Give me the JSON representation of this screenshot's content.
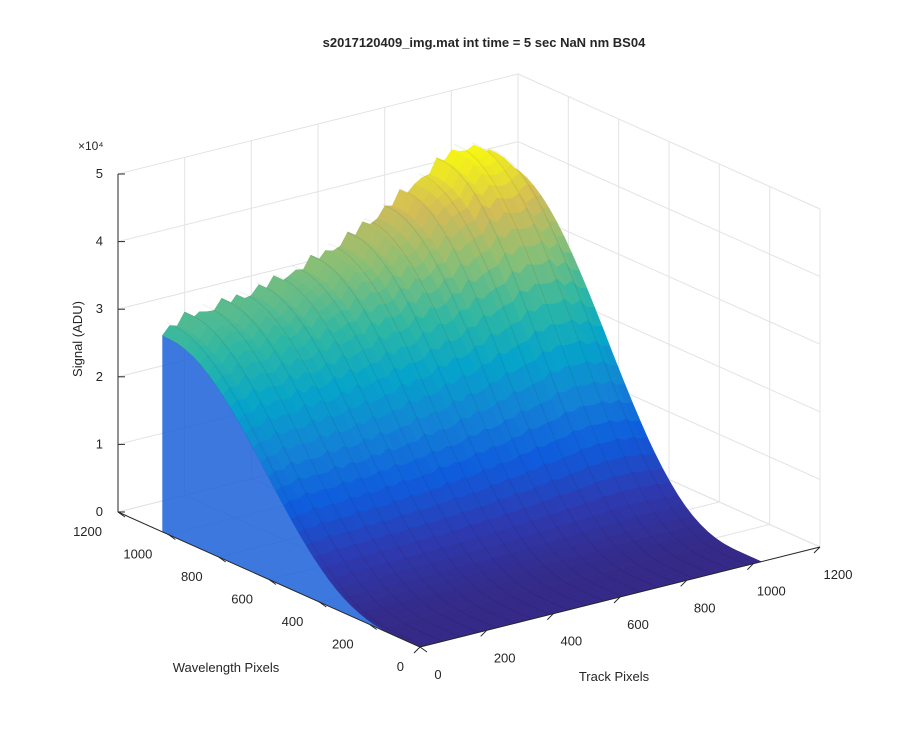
{
  "chart_data": {
    "type": "surface",
    "title": "s2017120409_img.mat int time = 5 sec  NaN nm BS04",
    "xlabel": "Track Pixels",
    "ylabel": "Wavelength Pixels",
    "zlabel": "Signal (ADU)",
    "xlim": [
      0,
      1200
    ],
    "ylim": [
      0,
      1200
    ],
    "zlim": [
      0,
      50000
    ],
    "x_ticks": [
      "0",
      "200",
      "400",
      "600",
      "800",
      "1000",
      "1200"
    ],
    "y_ticks": [
      "0",
      "200",
      "400",
      "600",
      "800",
      "1000",
      "1200"
    ],
    "z_ticks": [
      "0",
      "1",
      "2",
      "3",
      "4",
      "5"
    ],
    "z_multiplier": "×10⁴",
    "grid": true,
    "colormap": "parula",
    "data_extent": {
      "x": [
        0,
        1024
      ],
      "y": [
        0,
        1024
      ]
    },
    "crest_along_track": {
      "x": [
        0,
        50,
        100,
        150,
        200,
        250,
        300,
        350,
        400,
        450,
        500,
        550,
        600,
        650,
        700,
        750,
        800,
        850,
        900,
        950,
        1000,
        1024
      ],
      "z": [
        29000,
        30000,
        30500,
        30800,
        31000,
        31500,
        32000,
        32500,
        33200,
        34000,
        35000,
        36000,
        37200,
        38500,
        40000,
        41500,
        43000,
        44500,
        45500,
        44000,
        42500,
        42000
      ]
    },
    "peak_wavelength_pixel": 1000,
    "ridge_count": 19,
    "ridge_amplitude": 1500,
    "zero_level_wavelength_pixel": 80
  }
}
